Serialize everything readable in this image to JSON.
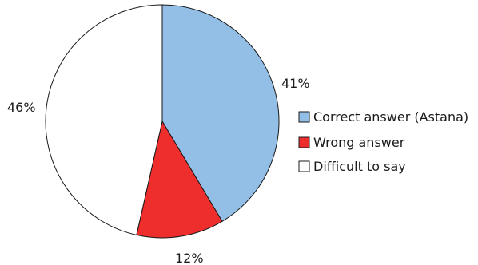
{
  "chart_data": {
    "type": "pie",
    "title": "",
    "start_angle": "12 o'clock",
    "direction": "clockwise",
    "slices": [
      {
        "label": "Correct answer (Astana)",
        "value": 41,
        "value_label": "41%",
        "color": "#93bfe6"
      },
      {
        "label": "Wrong answer",
        "value": 12,
        "value_label": "12%",
        "color": "#ee2d2d"
      },
      {
        "label": "Difficult to say",
        "value": 46,
        "value_label": "46%",
        "color": "#ffffff"
      }
    ],
    "legend_position": "right"
  }
}
